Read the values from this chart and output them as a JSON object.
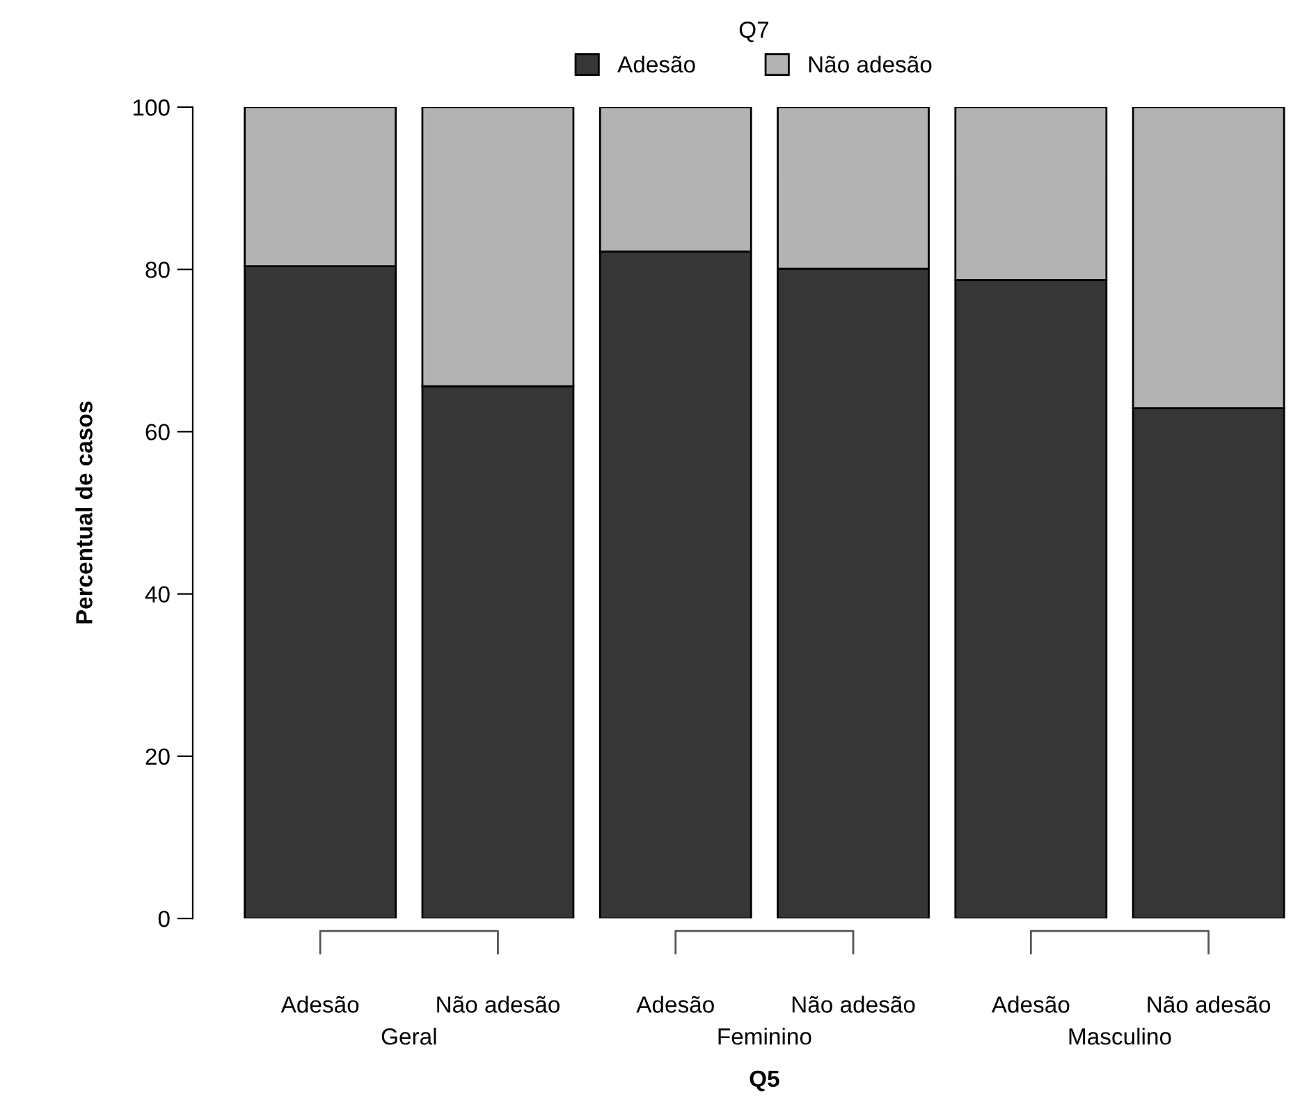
{
  "chart_data": {
    "type": "bar",
    "stacked": true,
    "xlabel": "Q5",
    "ylabel": "Percentual de casos",
    "legend_title": "Q7",
    "legend": "top",
    "categories": [
      "Adesão",
      "Não adesão",
      "Adesão",
      "Não adesão",
      "Adesão",
      "Não adesão"
    ],
    "annotations": [
      "Geral",
      "Feminino",
      "Masculino"
    ],
    "series": [
      {
        "name": "Adesão",
        "color": "#363636",
        "values": [
          80.4,
          65.6,
          82.2,
          80.1,
          78.7,
          62.9
        ]
      },
      {
        "name": "Não adesão",
        "color": "#b3b3b3",
        "values": [
          19.6,
          34.4,
          17.8,
          19.9,
          21.3,
          37.1
        ]
      }
    ],
    "ylim": [
      0,
      100
    ],
    "yticks": [
      0,
      20,
      40,
      60,
      80,
      100
    ],
    "grid": false
  }
}
